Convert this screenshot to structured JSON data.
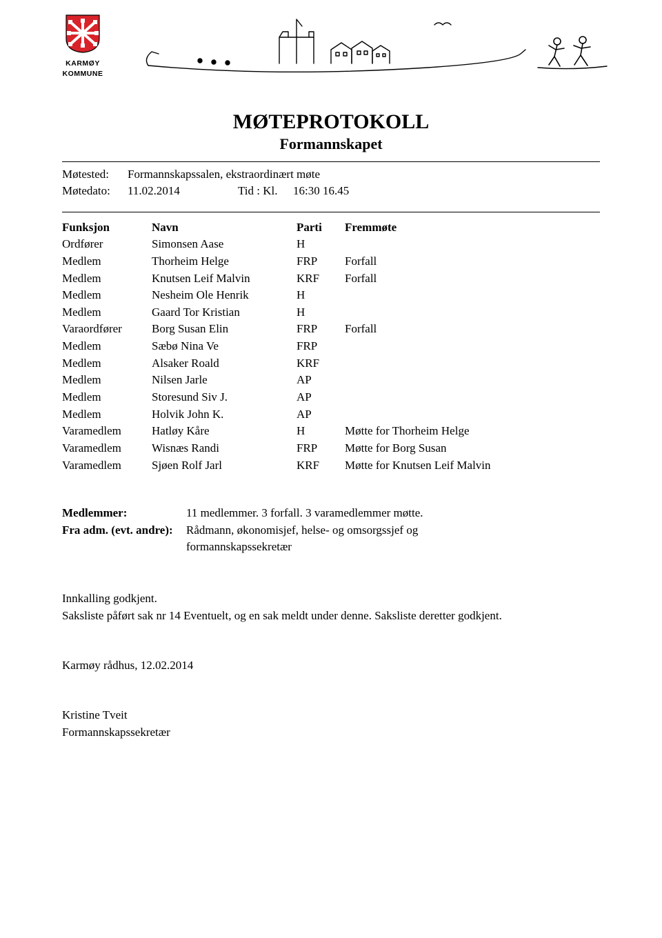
{
  "logo": {
    "line1": "KARMØY",
    "line2": "KOMMUNE",
    "shield_fill": "#d8232a",
    "shield_stroke": "#000000"
  },
  "title": "MØTEPROTOKOLL",
  "subtitle": "Formannskapet",
  "meta": {
    "sted_label": "Møtested:",
    "sted_value": "Formannskapssalen, ekstraordinært møte",
    "dato_label": "Møtedato:",
    "dato_value": "11.02.2014",
    "tid_label": "Tid : Kl.",
    "tid_value": "16:30 16.45"
  },
  "table": {
    "headers": {
      "funk": "Funksjon",
      "navn": "Navn",
      "parti": "Parti",
      "frem": "Fremmøte"
    },
    "rows": [
      {
        "funk": "Ordfører",
        "navn": "Simonsen Aase",
        "parti": "H",
        "frem": ""
      },
      {
        "funk": "Medlem",
        "navn": "Thorheim Helge",
        "parti": "FRP",
        "frem": "Forfall"
      },
      {
        "funk": "Medlem",
        "navn": "Knutsen Leif Malvin",
        "parti": "KRF",
        "frem": "Forfall"
      },
      {
        "funk": "Medlem",
        "navn": "Nesheim Ole Henrik",
        "parti": "H",
        "frem": ""
      },
      {
        "funk": "Medlem",
        "navn": "Gaard Tor Kristian",
        "parti": "H",
        "frem": ""
      },
      {
        "funk": "Varaordfører",
        "navn": "Borg Susan Elin",
        "parti": "FRP",
        "frem": "Forfall"
      },
      {
        "funk": "Medlem",
        "navn": "Sæbø Nina Ve",
        "parti": "FRP",
        "frem": ""
      },
      {
        "funk": "Medlem",
        "navn": "Alsaker Roald",
        "parti": "KRF",
        "frem": ""
      },
      {
        "funk": "Medlem",
        "navn": "Nilsen Jarle",
        "parti": "AP",
        "frem": ""
      },
      {
        "funk": "Medlem",
        "navn": "Storesund Siv J.",
        "parti": "AP",
        "frem": ""
      },
      {
        "funk": "Medlem",
        "navn": "Holvik John K.",
        "parti": "AP",
        "frem": ""
      },
      {
        "funk": "Varamedlem",
        "navn": "Hatløy Kåre",
        "parti": "H",
        "frem": "Møtte for Thorheim Helge"
      },
      {
        "funk": "Varamedlem",
        "navn": "Wisnæs Randi",
        "parti": "FRP",
        "frem": "Møtte for Borg Susan"
      },
      {
        "funk": "Varamedlem",
        "navn": "Sjøen Rolf Jarl",
        "parti": "KRF",
        "frem": "Møtte for Knutsen Leif Malvin"
      }
    ]
  },
  "info": {
    "medlemmer_label": "Medlemmer:",
    "medlemmer_value": "11 medlemmer. 3 forfall. 3 varamedlemmer møtte.",
    "fraadm_label": "Fra adm. (evt. andre):",
    "fraadm_value_line1": "Rådmann, økonomisjef, helse- og omsorgssjef og",
    "fraadm_value_line2": "formannskapssekretær"
  },
  "approval": {
    "line1": "Innkalling godkjent.",
    "line2": "Saksliste påført sak nr 14 Eventuelt, og en sak meldt under denne. Saksliste deretter godkjent."
  },
  "signoff": "Karmøy rådhus, 12.02.2014",
  "signatory": {
    "name": "Kristine Tveit",
    "role": "Formannskapssekretær"
  }
}
